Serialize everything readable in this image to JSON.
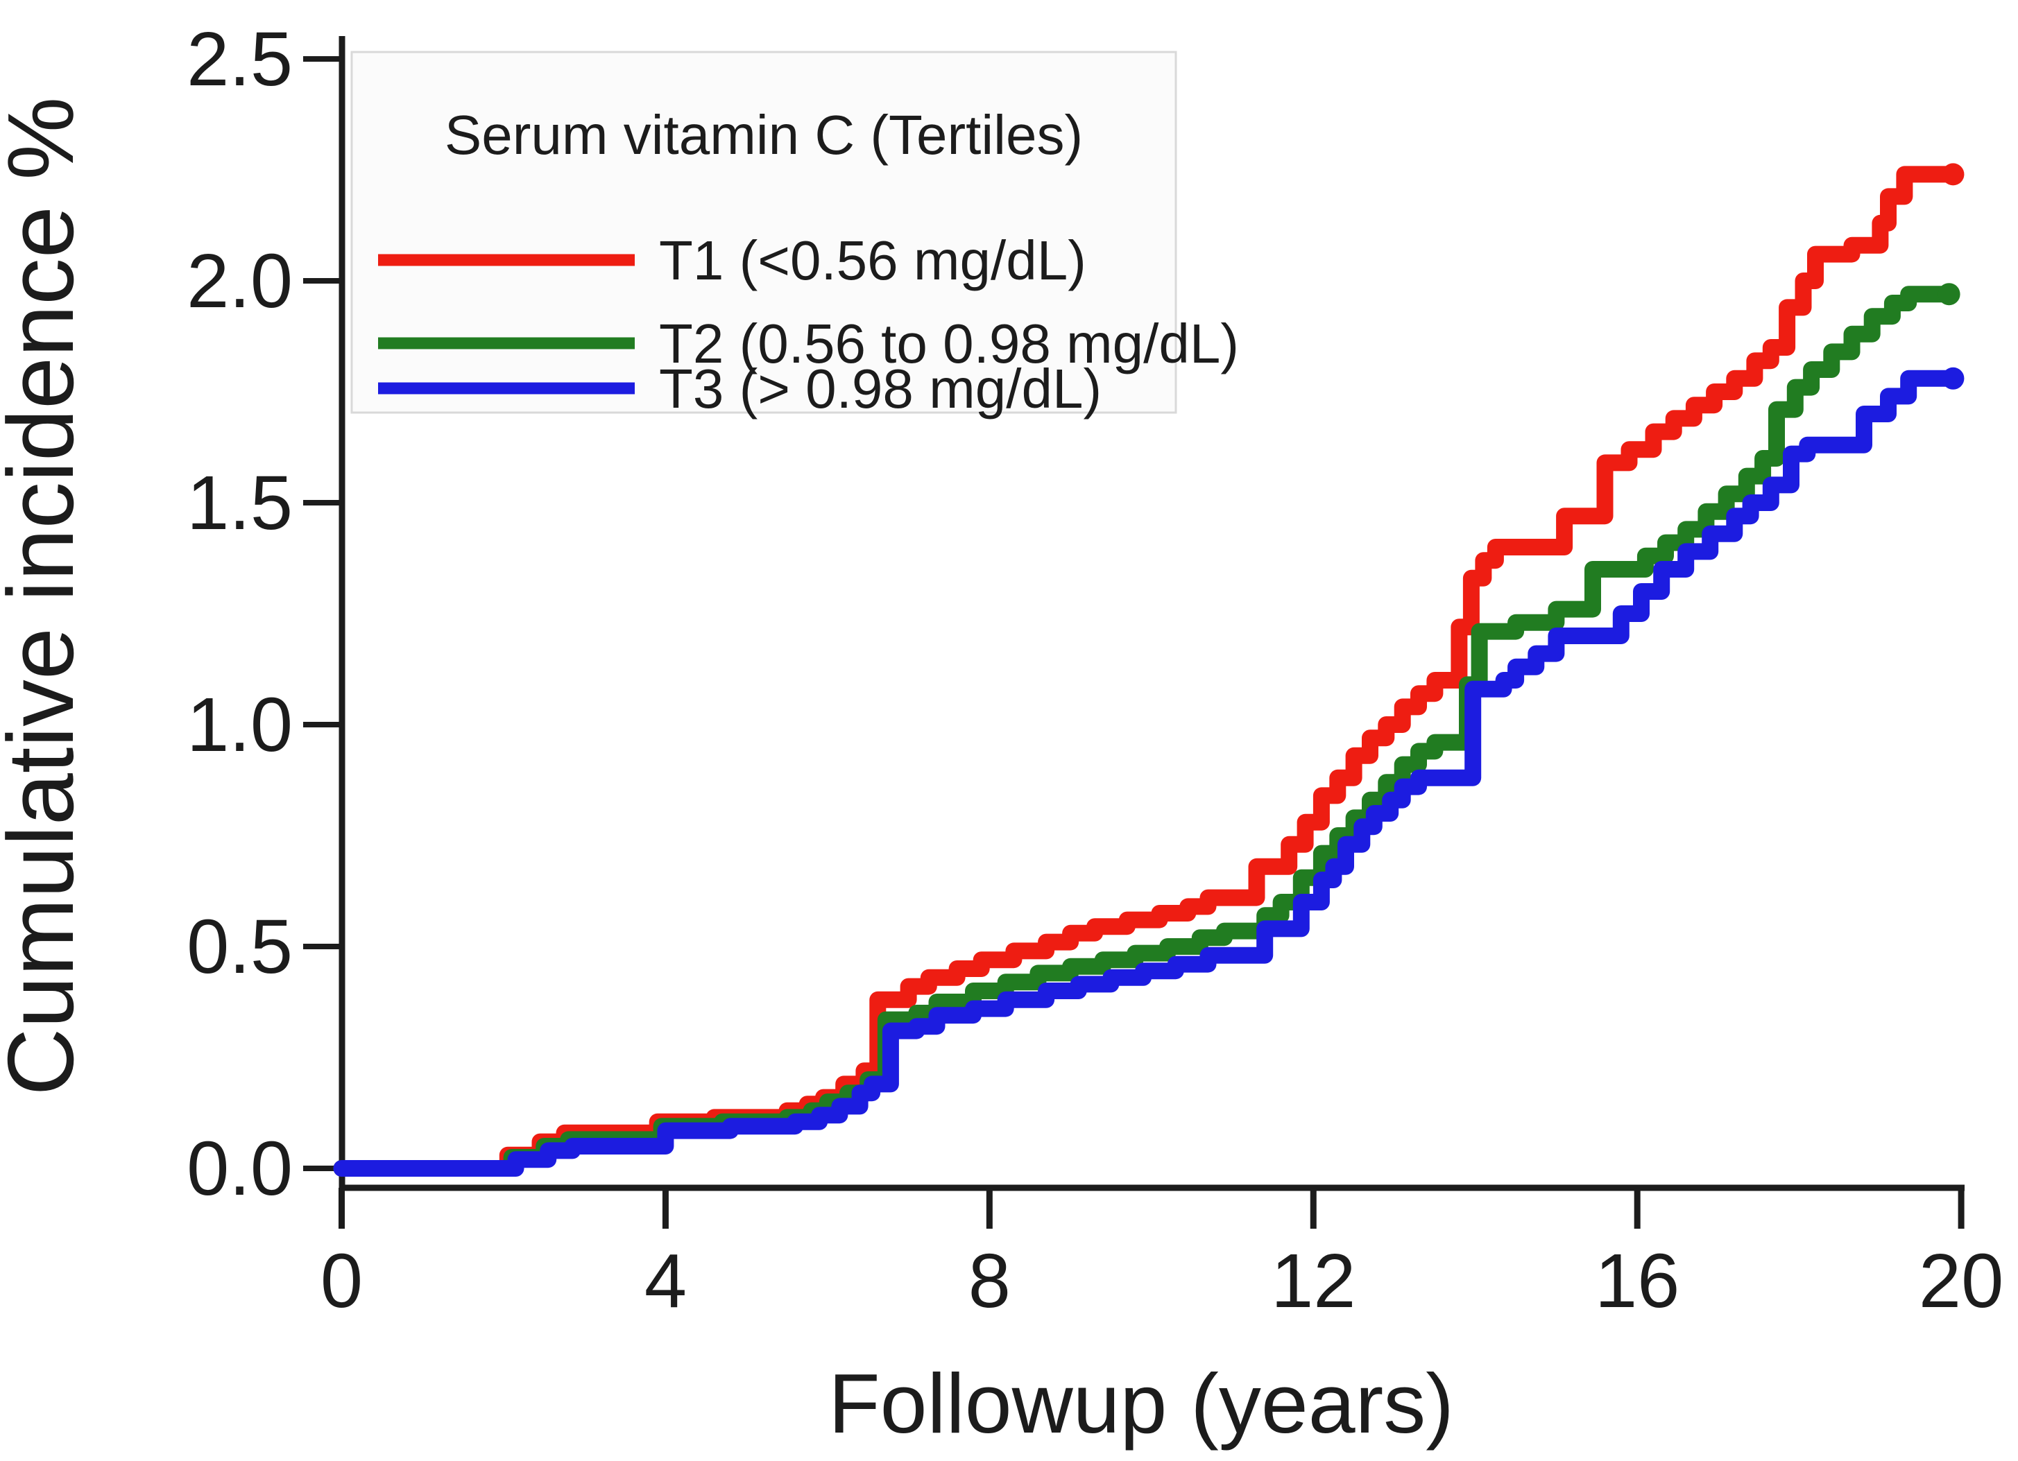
{
  "figure": {
    "kind": "cumulative incidence step plot",
    "background": "#ffffff",
    "axis_color": "#1c1c1c"
  },
  "x_axis": {
    "title": "Followup (years)",
    "range": [
      0,
      20
    ],
    "ticks": [
      {
        "label": "0",
        "value": 0
      },
      {
        "label": "4",
        "value": 4
      },
      {
        "label": "8",
        "value": 8
      },
      {
        "label": "12",
        "value": 12
      },
      {
        "label": "16",
        "value": 16
      },
      {
        "label": "20",
        "value": 20
      }
    ]
  },
  "y_axis": {
    "title": "Cumulative incidence %",
    "range": [
      0,
      2.5
    ],
    "ticks": [
      {
        "label": "0.0",
        "value": 0.0
      },
      {
        "label": "0.5",
        "value": 0.5
      },
      {
        "label": "1.0",
        "value": 1.0
      },
      {
        "label": "1.5",
        "value": 1.5
      },
      {
        "label": "2.0",
        "value": 2.0
      },
      {
        "label": "2.5",
        "value": 2.5
      }
    ]
  },
  "legend": {
    "title": "Serum vitamin C (Tertiles)",
    "border_color": "#d9d9d9",
    "fill_color": "#fbfbfb",
    "entries": [
      {
        "label": "T1 (<0.56 mg/dL)",
        "color": "#ee1d12"
      },
      {
        "label": "T2 (0.56 to 0.98 mg/dL)",
        "color": "#217c21"
      },
      {
        "label": "T3 (> 0.98 mg/dL)",
        "color": "#1c1ce0"
      }
    ]
  },
  "chart_data": {
    "type": "line",
    "subtype": "step_cumulative_incidence",
    "xlabel": "Followup (years)",
    "ylabel": "Cumulative incidence %",
    "xlim": [
      0,
      20
    ],
    "ylim": [
      0,
      2.5
    ],
    "grid": false,
    "legend_position": "top-left-inside",
    "series": [
      {
        "name": "T1 (<0.56 mg/dL)",
        "color": "#ee1d12",
        "points": [
          [
            0,
            0
          ],
          [
            2.05,
            0.03
          ],
          [
            2.45,
            0.06
          ],
          [
            2.75,
            0.08
          ],
          [
            3.9,
            0.105
          ],
          [
            4.6,
            0.115
          ],
          [
            5.5,
            0.13
          ],
          [
            5.75,
            0.145
          ],
          [
            5.95,
            0.16
          ],
          [
            6.2,
            0.19
          ],
          [
            6.45,
            0.22
          ],
          [
            6.62,
            0.38
          ],
          [
            7.0,
            0.41
          ],
          [
            7.25,
            0.43
          ],
          [
            7.6,
            0.45
          ],
          [
            7.9,
            0.47
          ],
          [
            8.3,
            0.49
          ],
          [
            8.7,
            0.51
          ],
          [
            9.0,
            0.53
          ],
          [
            9.3,
            0.545
          ],
          [
            9.7,
            0.56
          ],
          [
            10.1,
            0.575
          ],
          [
            10.45,
            0.59
          ],
          [
            10.7,
            0.61
          ],
          [
            11.3,
            0.68
          ],
          [
            11.7,
            0.73
          ],
          [
            11.9,
            0.78
          ],
          [
            12.1,
            0.84
          ],
          [
            12.3,
            0.88
          ],
          [
            12.5,
            0.93
          ],
          [
            12.7,
            0.97
          ],
          [
            12.9,
            1.0
          ],
          [
            13.1,
            1.04
          ],
          [
            13.3,
            1.07
          ],
          [
            13.5,
            1.1
          ],
          [
            13.8,
            1.22
          ],
          [
            13.95,
            1.33
          ],
          [
            14.1,
            1.37
          ],
          [
            14.25,
            1.4
          ],
          [
            15.1,
            1.47
          ],
          [
            15.6,
            1.59
          ],
          [
            15.9,
            1.62
          ],
          [
            16.2,
            1.66
          ],
          [
            16.45,
            1.69
          ],
          [
            16.7,
            1.72
          ],
          [
            16.95,
            1.75
          ],
          [
            17.2,
            1.78
          ],
          [
            17.45,
            1.82
          ],
          [
            17.65,
            1.85
          ],
          [
            17.85,
            1.94
          ],
          [
            18.05,
            2.0
          ],
          [
            18.2,
            2.06
          ],
          [
            18.65,
            2.08
          ],
          [
            19.0,
            2.13
          ],
          [
            19.1,
            2.19
          ],
          [
            19.3,
            2.24
          ],
          [
            19.9,
            2.24
          ]
        ]
      },
      {
        "name": "T2 (0.56 to 0.98 mg/dL)",
        "color": "#217c21",
        "points": [
          [
            0,
            0
          ],
          [
            2.1,
            0.025
          ],
          [
            2.5,
            0.05
          ],
          [
            2.8,
            0.065
          ],
          [
            3.95,
            0.095
          ],
          [
            4.7,
            0.105
          ],
          [
            5.5,
            0.115
          ],
          [
            5.8,
            0.13
          ],
          [
            6.0,
            0.15
          ],
          [
            6.25,
            0.17
          ],
          [
            6.5,
            0.2
          ],
          [
            6.72,
            0.335
          ],
          [
            7.1,
            0.35
          ],
          [
            7.35,
            0.375
          ],
          [
            7.8,
            0.4
          ],
          [
            8.2,
            0.42
          ],
          [
            8.6,
            0.44
          ],
          [
            9.0,
            0.455
          ],
          [
            9.4,
            0.47
          ],
          [
            9.8,
            0.485
          ],
          [
            10.2,
            0.5
          ],
          [
            10.6,
            0.52
          ],
          [
            10.9,
            0.535
          ],
          [
            11.4,
            0.57
          ],
          [
            11.6,
            0.6
          ],
          [
            11.85,
            0.655
          ],
          [
            12.1,
            0.71
          ],
          [
            12.3,
            0.75
          ],
          [
            12.5,
            0.79
          ],
          [
            12.7,
            0.83
          ],
          [
            12.9,
            0.87
          ],
          [
            13.1,
            0.91
          ],
          [
            13.3,
            0.94
          ],
          [
            13.5,
            0.96
          ],
          [
            13.9,
            1.09
          ],
          [
            14.05,
            1.21
          ],
          [
            14.5,
            1.23
          ],
          [
            15.0,
            1.26
          ],
          [
            15.45,
            1.35
          ],
          [
            16.1,
            1.38
          ],
          [
            16.35,
            1.41
          ],
          [
            16.6,
            1.44
          ],
          [
            16.85,
            1.48
          ],
          [
            17.1,
            1.52
          ],
          [
            17.35,
            1.56
          ],
          [
            17.55,
            1.6
          ],
          [
            17.72,
            1.71
          ],
          [
            17.95,
            1.76
          ],
          [
            18.15,
            1.8
          ],
          [
            18.4,
            1.84
          ],
          [
            18.65,
            1.88
          ],
          [
            18.9,
            1.92
          ],
          [
            19.15,
            1.95
          ],
          [
            19.35,
            1.97
          ],
          [
            19.85,
            1.97
          ]
        ]
      },
      {
        "name": "T3 (> 0.98 mg/dL)",
        "color": "#1c1ce0",
        "points": [
          [
            0,
            0
          ],
          [
            2.15,
            0.02
          ],
          [
            2.55,
            0.04
          ],
          [
            2.85,
            0.05
          ],
          [
            4.0,
            0.085
          ],
          [
            4.8,
            0.095
          ],
          [
            5.6,
            0.105
          ],
          [
            5.9,
            0.12
          ],
          [
            6.15,
            0.14
          ],
          [
            6.4,
            0.17
          ],
          [
            6.55,
            0.19
          ],
          [
            6.78,
            0.31
          ],
          [
            7.1,
            0.32
          ],
          [
            7.35,
            0.345
          ],
          [
            7.8,
            0.36
          ],
          [
            8.2,
            0.38
          ],
          [
            8.7,
            0.4
          ],
          [
            9.1,
            0.415
          ],
          [
            9.5,
            0.43
          ],
          [
            9.9,
            0.445
          ],
          [
            10.3,
            0.46
          ],
          [
            10.7,
            0.48
          ],
          [
            11.4,
            0.54
          ],
          [
            11.85,
            0.6
          ],
          [
            12.1,
            0.65
          ],
          [
            12.25,
            0.68
          ],
          [
            12.4,
            0.73
          ],
          [
            12.6,
            0.77
          ],
          [
            12.75,
            0.8
          ],
          [
            12.95,
            0.83
          ],
          [
            13.1,
            0.86
          ],
          [
            13.3,
            0.88
          ],
          [
            13.97,
            1.08
          ],
          [
            14.35,
            1.1
          ],
          [
            14.5,
            1.13
          ],
          [
            14.75,
            1.16
          ],
          [
            15.0,
            1.2
          ],
          [
            15.8,
            1.25
          ],
          [
            16.05,
            1.3
          ],
          [
            16.3,
            1.35
          ],
          [
            16.6,
            1.39
          ],
          [
            16.9,
            1.43
          ],
          [
            17.2,
            1.47
          ],
          [
            17.4,
            1.5
          ],
          [
            17.65,
            1.54
          ],
          [
            17.9,
            1.61
          ],
          [
            18.1,
            1.63
          ],
          [
            18.8,
            1.7
          ],
          [
            19.1,
            1.74
          ],
          [
            19.35,
            1.78
          ],
          [
            19.9,
            1.78
          ]
        ]
      }
    ]
  }
}
